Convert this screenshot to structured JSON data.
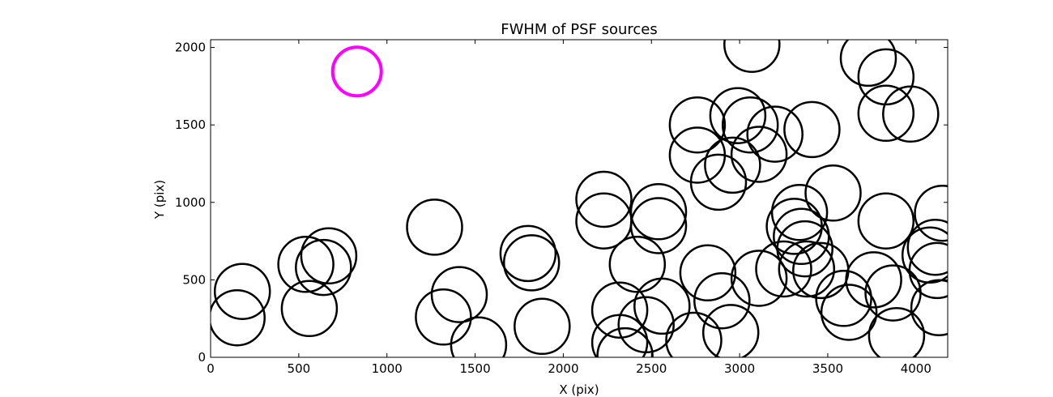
{
  "chart_data": {
    "type": "scatter",
    "title": "FWHM of PSF sources",
    "xlabel": "X (pix)",
    "ylabel": "Y (pix)",
    "xlim": [
      0,
      4180
    ],
    "ylim": [
      0,
      2050
    ],
    "xticks": [
      0,
      500,
      1000,
      1500,
      2000,
      2500,
      3000,
      3500,
      4000
    ],
    "yticks": [
      0,
      500,
      1000,
      1500,
      2000
    ],
    "grid": false,
    "marker": "open-circle",
    "colors": {
      "sources": "#000000",
      "highlight": "#ff00ff"
    },
    "highlight": {
      "x": 830,
      "y": 1845
    },
    "points": [
      {
        "x": 150,
        "y": 255
      },
      {
        "x": 180,
        "y": 425
      },
      {
        "x": 540,
        "y": 600
      },
      {
        "x": 560,
        "y": 315
      },
      {
        "x": 640,
        "y": 580
      },
      {
        "x": 670,
        "y": 655
      },
      {
        "x": 1270,
        "y": 840
      },
      {
        "x": 1320,
        "y": 260
      },
      {
        "x": 1410,
        "y": 405
      },
      {
        "x": 1520,
        "y": 80
      },
      {
        "x": 1800,
        "y": 670
      },
      {
        "x": 1820,
        "y": 610
      },
      {
        "x": 1880,
        "y": 200
      },
      {
        "x": 2230,
        "y": 1020
      },
      {
        "x": 2230,
        "y": 880
      },
      {
        "x": 2320,
        "y": 305
      },
      {
        "x": 2320,
        "y": 95
      },
      {
        "x": 2350,
        "y": 10
      },
      {
        "x": 2420,
        "y": 600
      },
      {
        "x": 2470,
        "y": 210
      },
      {
        "x": 2540,
        "y": 940
      },
      {
        "x": 2540,
        "y": 850
      },
      {
        "x": 2560,
        "y": 330
      },
      {
        "x": 2740,
        "y": 110
      },
      {
        "x": 2760,
        "y": 1500
      },
      {
        "x": 2760,
        "y": 1305
      },
      {
        "x": 2820,
        "y": 545
      },
      {
        "x": 2880,
        "y": 1130
      },
      {
        "x": 2900,
        "y": 365
      },
      {
        "x": 2950,
        "y": 160
      },
      {
        "x": 2960,
        "y": 1240
      },
      {
        "x": 2990,
        "y": 1560
      },
      {
        "x": 3060,
        "y": 1500
      },
      {
        "x": 3070,
        "y": 2020
      },
      {
        "x": 3110,
        "y": 510
      },
      {
        "x": 3110,
        "y": 1310
      },
      {
        "x": 3200,
        "y": 1440
      },
      {
        "x": 3250,
        "y": 570
      },
      {
        "x": 3310,
        "y": 845
      },
      {
        "x": 3340,
        "y": 935
      },
      {
        "x": 3350,
        "y": 780
      },
      {
        "x": 3370,
        "y": 700
      },
      {
        "x": 3380,
        "y": 570
      },
      {
        "x": 3410,
        "y": 1470
      },
      {
        "x": 3460,
        "y": 560
      },
      {
        "x": 3530,
        "y": 1060
      },
      {
        "x": 3590,
        "y": 380
      },
      {
        "x": 3620,
        "y": 290
      },
      {
        "x": 3730,
        "y": 1930
      },
      {
        "x": 3760,
        "y": 500
      },
      {
        "x": 3830,
        "y": 1810
      },
      {
        "x": 3830,
        "y": 1575
      },
      {
        "x": 3830,
        "y": 880
      },
      {
        "x": 3870,
        "y": 415
      },
      {
        "x": 3890,
        "y": 140
      },
      {
        "x": 3970,
        "y": 1570
      },
      {
        "x": 4080,
        "y": 660
      },
      {
        "x": 4110,
        "y": 710
      },
      {
        "x": 4120,
        "y": 560
      },
      {
        "x": 4130,
        "y": 320
      },
      {
        "x": 4150,
        "y": 930
      }
    ]
  }
}
